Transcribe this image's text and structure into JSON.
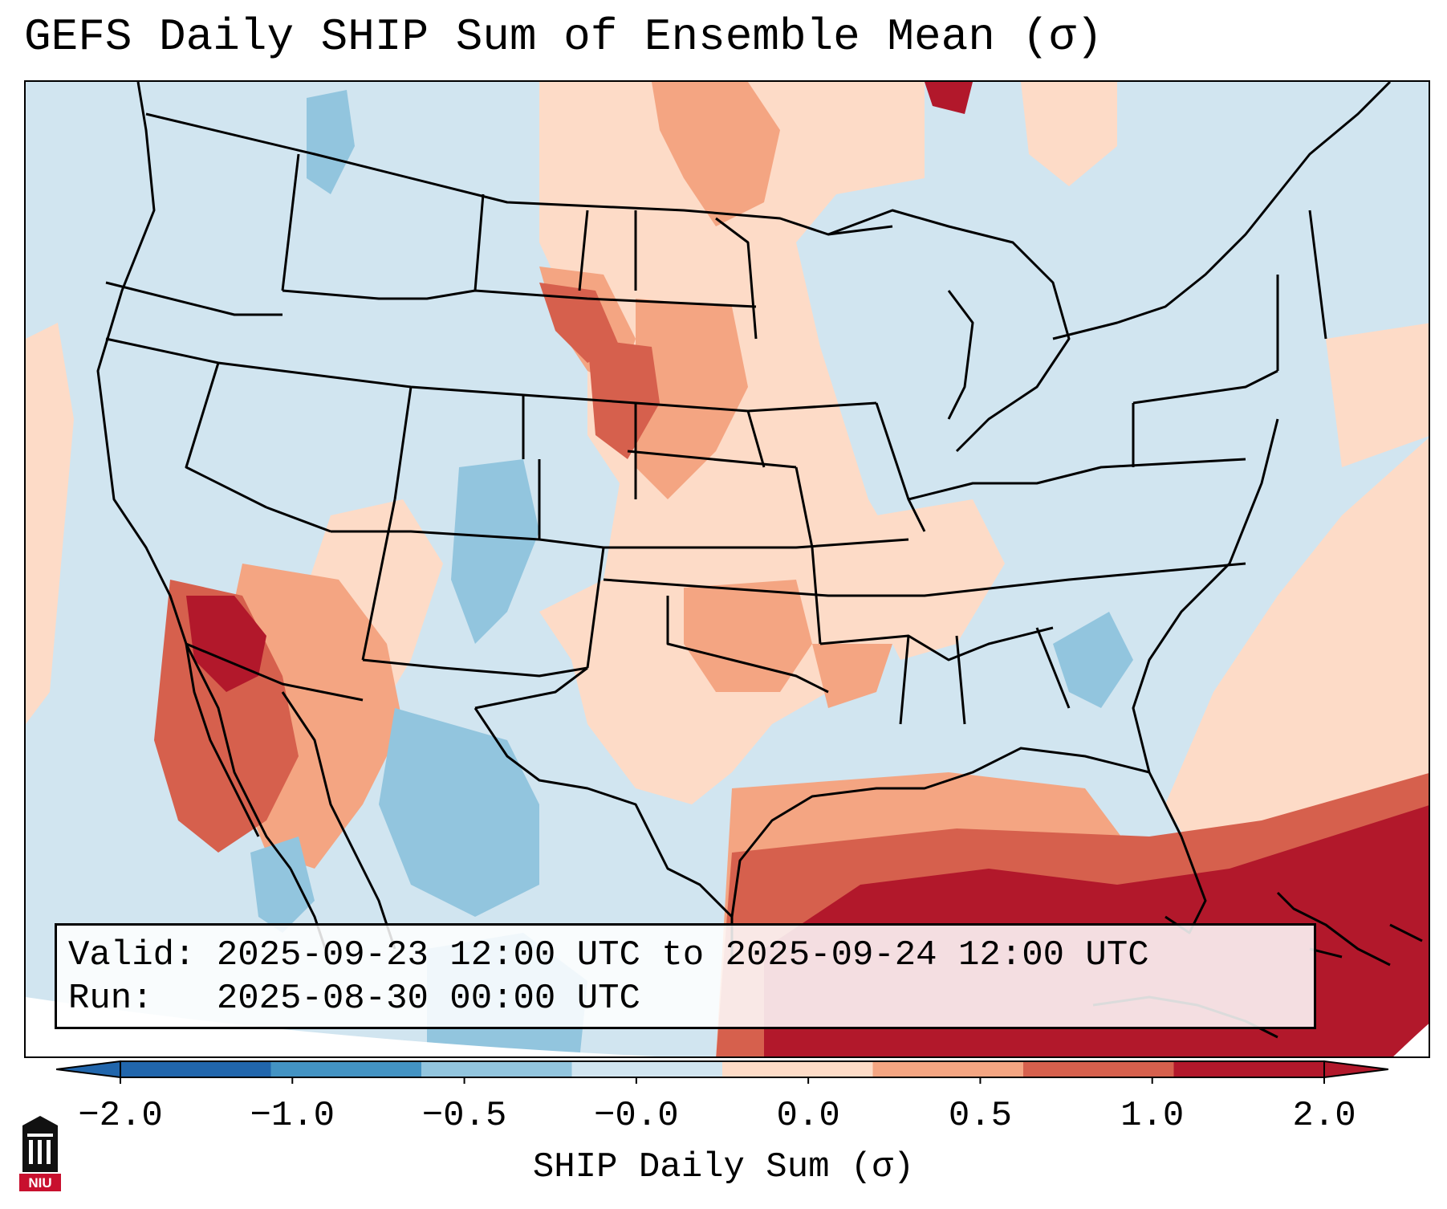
{
  "title": "GEFS Daily SHIP Sum of Ensemble Mean (σ)",
  "info": {
    "valid_label": "Valid:",
    "valid_value": "2025-09-23 12:00 UTC to 2025-09-24 12:00 UTC",
    "run_label": "Run:",
    "run_value": "2025-08-30 00:00 UTC"
  },
  "colorbar": {
    "label": "SHIP Daily Sum (σ)",
    "ticks": [
      "−2.0",
      "−1.0",
      "−0.5",
      "−0.0",
      "0.0",
      "0.5",
      "1.0",
      "2.0"
    ],
    "colors": [
      "#2166ac",
      "#4393c3",
      "#92c5de",
      "#d1e5f0",
      "#fddbc7",
      "#f4a582",
      "#d6604d",
      "#b2182b"
    ],
    "extend": "both"
  },
  "logo": {
    "text": "NIU",
    "color": "#c8102e"
  },
  "map": {
    "projection": "CONUS Lambert conformal",
    "ocean_color": "#d1e5f0",
    "anomaly_regions": [
      {
        "name": "southwest-desert-hot",
        "sigma": 1.5
      },
      {
        "name": "gulf-of-mexico-caribbean",
        "sigma": 2.0
      },
      {
        "name": "northern-plains",
        "sigma": 0.8
      },
      {
        "name": "atlantic-offshore",
        "sigma": 0.5
      },
      {
        "name": "four-corners-cool",
        "sigma": -0.6
      },
      {
        "name": "mexico-cool",
        "sigma": -0.6
      }
    ]
  }
}
